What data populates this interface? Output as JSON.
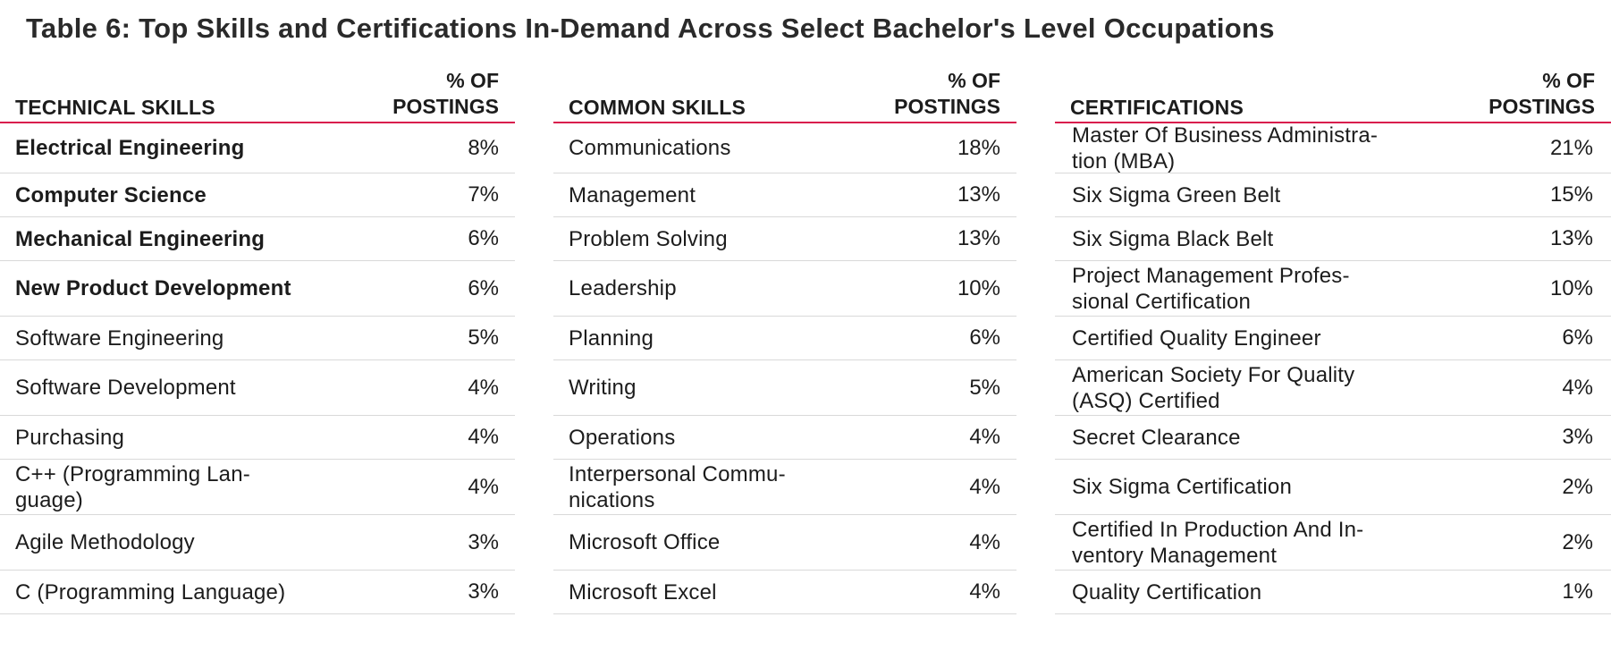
{
  "title": "Table 6: Top Skills and Certifications In-Demand Across Select Bachelor's Level Occupations",
  "tables": {
    "technical": {
      "header": "TECHNICAL SKILLS",
      "pct_header_line1": "% OF",
      "pct_header_line2": "POSTINGS",
      "rows": [
        {
          "name": "Electrical Engineering",
          "pct": "8%"
        },
        {
          "name": "Computer Science",
          "pct": "7%"
        },
        {
          "name": "Mechanical Engineering",
          "pct": "6%"
        },
        {
          "name": "New Product Development",
          "pct": "6%"
        },
        {
          "name": "Software Engineering",
          "pct": "5%"
        },
        {
          "name": "Software Development",
          "pct": "4%"
        },
        {
          "name": "Purchasing",
          "pct": "4%"
        },
        {
          "name": "C++ (Programming Lan-\nguage)",
          "pct": "4%"
        },
        {
          "name": "Agile Methodology",
          "pct": "3%"
        },
        {
          "name": "C (Programming Language)",
          "pct": "3%"
        }
      ]
    },
    "common": {
      "header": "COMMON SKILLS",
      "pct_header_line1": "% OF",
      "pct_header_line2": "POSTINGS",
      "rows": [
        {
          "name": "Communications",
          "pct": "18%"
        },
        {
          "name": "Management",
          "pct": "13%"
        },
        {
          "name": "Problem Solving",
          "pct": "13%"
        },
        {
          "name": "Leadership",
          "pct": "10%"
        },
        {
          "name": "Planning",
          "pct": "6%"
        },
        {
          "name": "Writing",
          "pct": "5%"
        },
        {
          "name": "Operations",
          "pct": "4%"
        },
        {
          "name": "Interpersonal Commu-\nnications",
          "pct": "4%"
        },
        {
          "name": "Microsoft Office",
          "pct": "4%"
        },
        {
          "name": "Microsoft Excel",
          "pct": "4%"
        }
      ]
    },
    "certifications": {
      "header": "CERTIFICATIONS",
      "pct_header_line1": "% OF",
      "pct_header_line2": "POSTINGS",
      "rows": [
        {
          "name": "Master Of Business Administra-\ntion (MBA)",
          "pct": "21%"
        },
        {
          "name": "Six Sigma Green Belt",
          "pct": "15%"
        },
        {
          "name": "Six Sigma Black Belt",
          "pct": "13%"
        },
        {
          "name": "Project Management Profes-\nsional Certification",
          "pct": "10%"
        },
        {
          "name": "Certified Quality Engineer",
          "pct": "6%"
        },
        {
          "name": "American Society For Quality\n(ASQ) Certified",
          "pct": "4%"
        },
        {
          "name": "Secret Clearance",
          "pct": "3%"
        },
        {
          "name": "Six Sigma Certification",
          "pct": "2%"
        },
        {
          "name": "Certified In Production And In-\nventory Management",
          "pct": "2%"
        },
        {
          "name": "Quality Certification",
          "pct": "1%"
        }
      ]
    }
  }
}
